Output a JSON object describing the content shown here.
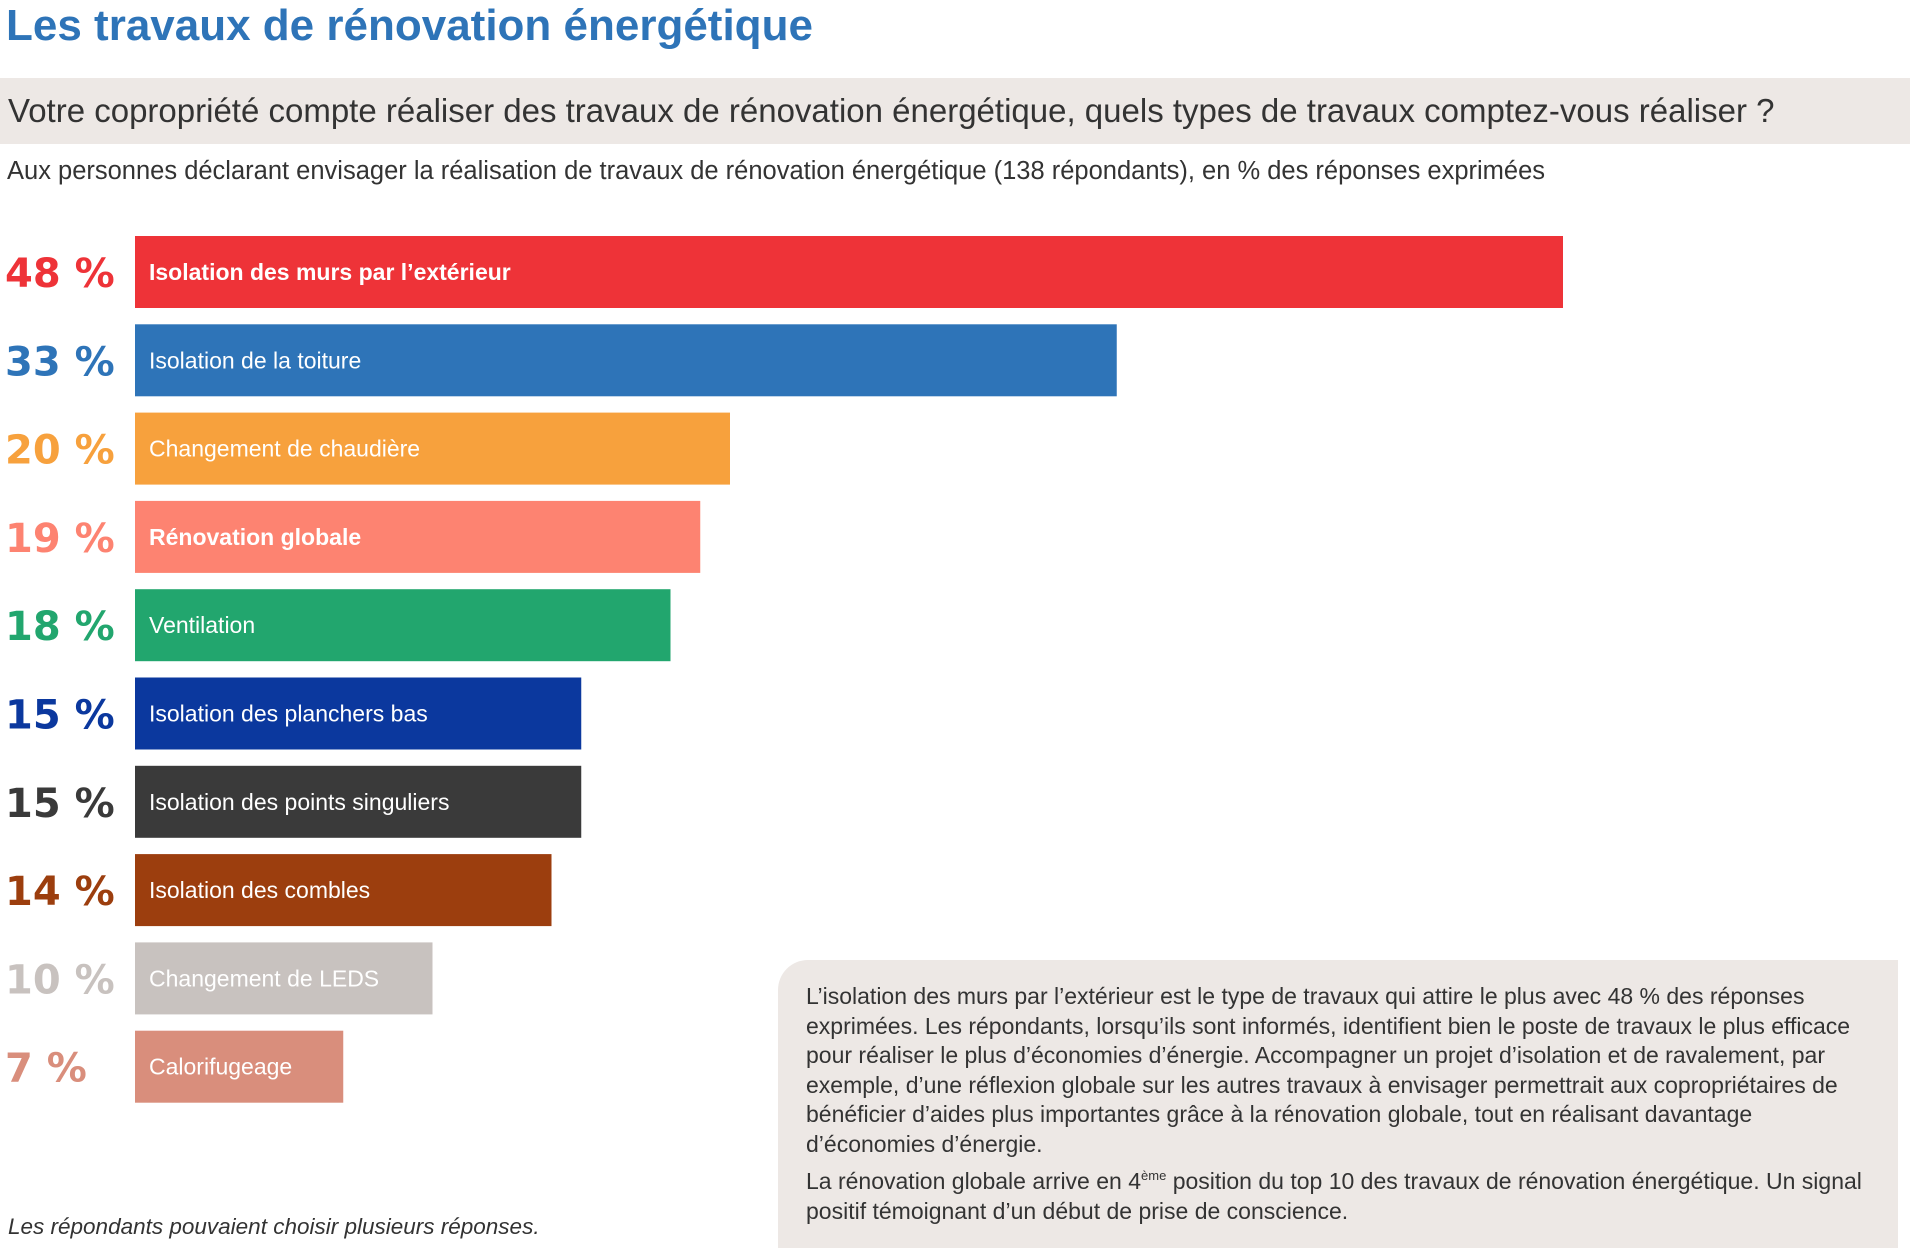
{
  "title": "Les travaux de rénovation énergétique",
  "question": "Votre copropriété compte réaliser des travaux de rénovation énergétique, quels types de travaux comptez-vous réaliser ?",
  "subtitle": "Aux personnes déclarant envisager la réalisation de travaux de rénovation énergétique (138 répondants), en % des réponses exprimées",
  "footnote": "Les répondants pouvaient choisir plusieurs réponses.",
  "callout": {
    "paragraph1": "L’isolation des murs par l’extérieur est le type de travaux qui attire le plus avec 48 % des réponses exprimées. Les répondants, lorsqu’ils sont informés, identifient bien le poste de travaux le plus efficace pour réaliser le plus d’économies d’énergie. Accompagner un projet d’isolation et de ravalement, par exemple, d’une réflexion globale sur les autres travaux à envisager permettrait aux copropriétaires de bénéficier d’aides plus importantes grâce à la rénovation globale, tout en réalisant davantage d’économies d’énergie.",
    "paragraph2_before": "La rénovation globale arrive en 4",
    "paragraph2_sup": "ème",
    "paragraph2_after": " position du top 10 des travaux de rénovation énergétique. Un signal positif témoignant d’un début de prise de conscience."
  },
  "chart_data": {
    "type": "bar",
    "orientation": "horizontal",
    "unit": "%",
    "xlim": [
      0,
      48
    ],
    "categories": [
      "Isolation des murs par l’extérieur",
      "Isolation de la toiture",
      "Changement de chaudière",
      "Rénovation globale",
      "Ventilation",
      "Isolation des planchers bas",
      "Isolation des points singuliers",
      "Isolation des combles",
      "Changement de LEDS",
      "Calorifugeage"
    ],
    "values": [
      48,
      33,
      20,
      19,
      18,
      15,
      15,
      14,
      10,
      7
    ],
    "value_labels": [
      "48 %",
      "33 %",
      "20 %",
      "19 %",
      "18 %",
      "15 %",
      "15 %",
      "14 %",
      "10 %",
      "7 %"
    ],
    "colors": [
      "#ee3338",
      "#2e74b8",
      "#f7a13d",
      "#fd8371",
      "#22a66e",
      "#0b389e",
      "#3a3a3a",
      "#9c3e0e",
      "#c8c2bf",
      "#d98e7c"
    ],
    "bold_labels": [
      true,
      false,
      false,
      true,
      false,
      false,
      false,
      false,
      false,
      false
    ]
  }
}
